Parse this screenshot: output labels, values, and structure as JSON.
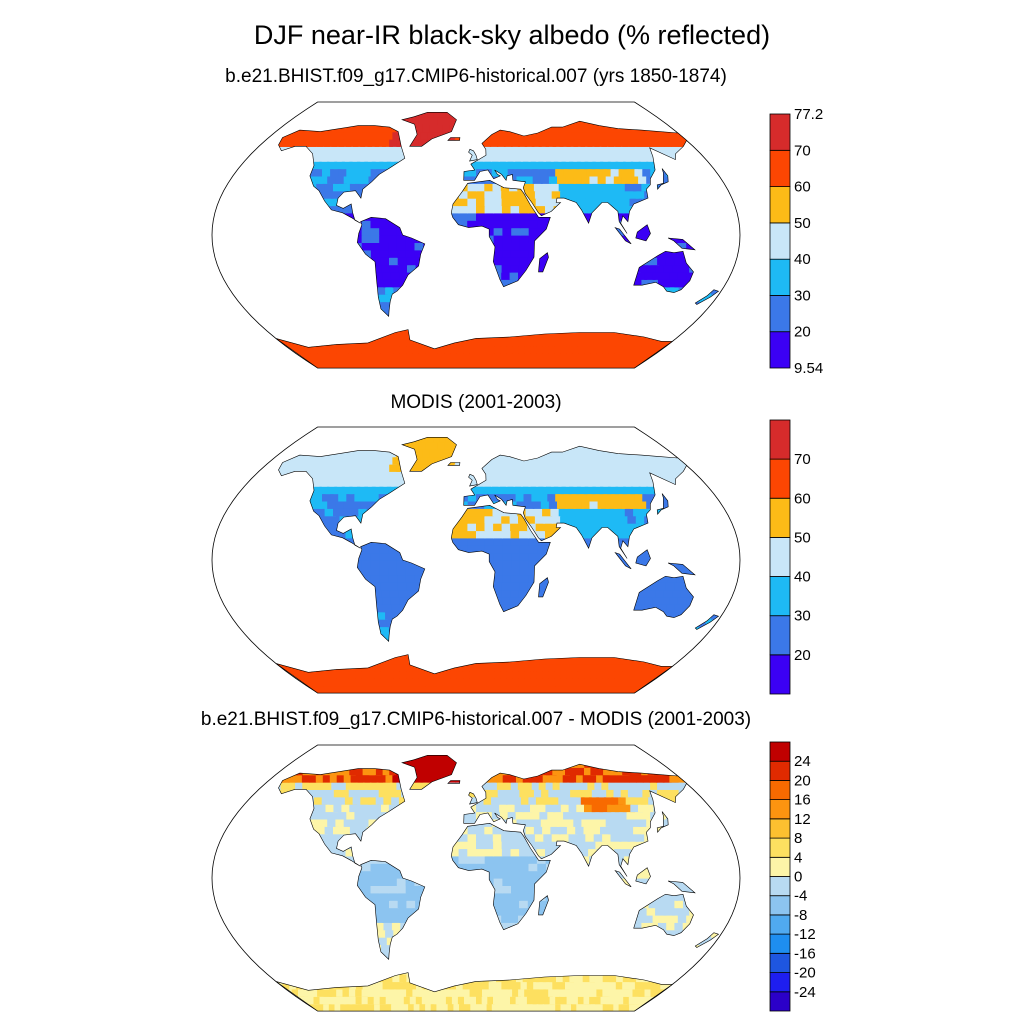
{
  "title": "DJF near-IR black-sky albedo (% reflected)",
  "panels": [
    {
      "title": "b.e21.BHIST.f09_g17.CMIP6-historical.007 (yrs 1850-1874)",
      "colorbar": {
        "colors": [
          "#3b00f5",
          "#3b78e8",
          "#1ebaf5",
          "#c8e6f8",
          "#fcbb17",
          "#fc4602",
          "#d62b2b"
        ],
        "labels": [
          "9.54",
          "20",
          "30",
          "40",
          "50",
          "60",
          "70",
          "77.2"
        ],
        "label_mode": "edges"
      }
    },
    {
      "title": "MODIS (2001-2003)",
      "colorbar": {
        "colors": [
          "#3b00f5",
          "#3b78e8",
          "#1ebaf5",
          "#c8e6f8",
          "#fcbb17",
          "#fc4602",
          "#d62b2b"
        ],
        "labels": [
          "20",
          "30",
          "40",
          "50",
          "60",
          "70"
        ],
        "label_mode": "inner"
      }
    },
    {
      "title": "b.e21.BHIST.f09_g17.CMIP6-historical.007 - MODIS (2001-2003)",
      "colorbar": {
        "colors": [
          "#2b00c8",
          "#1e1ef0",
          "#1e56e0",
          "#1e8ef0",
          "#50aaf0",
          "#8cc4f0",
          "#b8daf2",
          "#fdf5a8",
          "#fde060",
          "#fcc030",
          "#fc9410",
          "#f86a00",
          "#e02a00",
          "#c00000"
        ],
        "labels": [
          "-24",
          "-20",
          "-16",
          "-12",
          "-8",
          "-4",
          "0",
          "4",
          "8",
          "12",
          "16",
          "20",
          "24"
        ],
        "label_mode": "inner"
      }
    }
  ]
}
